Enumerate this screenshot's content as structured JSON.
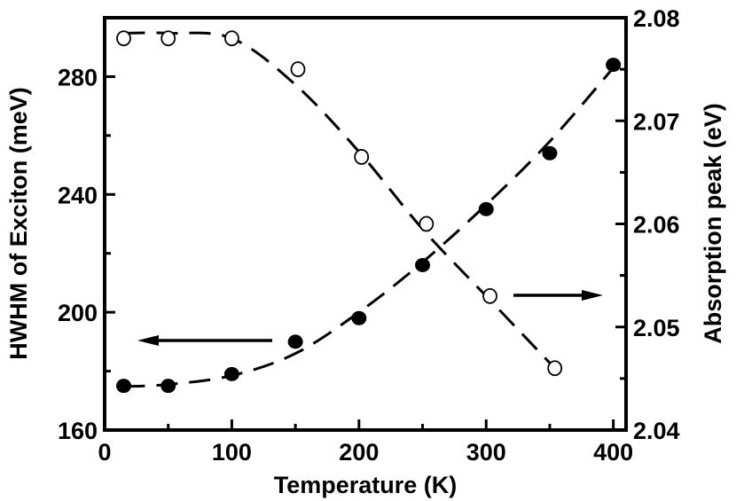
{
  "chart_data": {
    "type": "scatter",
    "title": "",
    "xlabel": "Temperature (K)",
    "ylabel": "HWHM of Exciton (meV)",
    "y2label": "Absorption peak (eV)",
    "xlim": [
      0,
      410
    ],
    "ylim": [
      160,
      300
    ],
    "y2lim": [
      2.04,
      2.08
    ],
    "x_ticks": [
      0,
      100,
      200,
      300,
      400
    ],
    "x_tick_labels": [
      "0",
      "100",
      "200",
      "300",
      "400"
    ],
    "y_ticks": [
      160,
      200,
      240,
      280
    ],
    "y_tick_labels": [
      "160",
      "200",
      "240",
      "280"
    ],
    "y2_ticks": [
      2.04,
      2.05,
      2.06,
      2.07,
      2.08
    ],
    "y2_tick_labels": [
      "2.04",
      "2.05",
      "2.06",
      "2.07",
      "2.08"
    ],
    "grid": false,
    "series": [
      {
        "name": "HWHM of Exciton",
        "axis": "left",
        "marker": "filled-circle",
        "x": [
          15,
          50,
          100,
          150,
          200,
          250,
          300,
          350,
          400
        ],
        "values": [
          175,
          175,
          179,
          190,
          198,
          216,
          235,
          254,
          284
        ]
      },
      {
        "name": "Absorption peak",
        "axis": "right",
        "marker": "open-circle",
        "x": [
          15,
          50,
          100,
          152,
          202,
          253,
          303,
          354
        ],
        "values": [
          2.078,
          2.078,
          2.078,
          2.075,
          2.0665,
          2.06,
          2.053,
          2.046
        ]
      }
    ],
    "fits": [
      {
        "name": "HWHM fit",
        "axis": "left",
        "style": "dashed",
        "x": [
          15,
          50,
          100,
          150,
          200,
          250,
          300,
          350,
          400
        ],
        "values": [
          174.8,
          175.5,
          178.5,
          186,
          200,
          217,
          236.5,
          258,
          283
        ]
      },
      {
        "name": "Absorption peak fit",
        "axis": "right",
        "style": "dashed",
        "x": [
          15,
          50,
          100,
          150,
          200,
          250,
          300,
          354
        ],
        "values": [
          2.0785,
          2.0785,
          2.078,
          2.0735,
          2.067,
          2.0595,
          2.053,
          2.046
        ]
      }
    ],
    "annotations": [
      {
        "type": "arrow",
        "direction": "left",
        "points_to_axis": "left",
        "near_series": "HWHM of Exciton"
      },
      {
        "type": "arrow",
        "direction": "right",
        "points_to_axis": "right",
        "near_series": "Absorption peak"
      }
    ]
  },
  "colors": {
    "ink": "#000000",
    "background": "#ffffff"
  }
}
